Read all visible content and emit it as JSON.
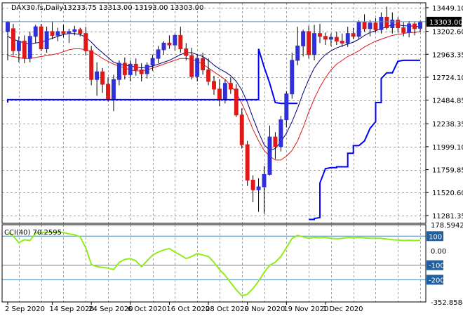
{
  "header": {
    "symbol": "DAX30.fs,Daily",
    "ohlc": "13233.75 13313.00 13193.00 13303.00"
  },
  "cci_label": "CCI(40) 70.2595",
  "colors": {
    "bull": "#3030d8",
    "bear": "#e01818",
    "ma_fast": "#000080",
    "ma_slow": "#e01818",
    "trail": "#0000ff",
    "cci": "#90ee18",
    "price_box": "#000000",
    "level_box": "#2060a0",
    "hline": "#4a86b4"
  },
  "chart_data": [
    {
      "type": "candlestick",
      "title": "DAX30.fs,Daily",
      "subtitle": "13233.75 13313.00 13193.00 13303.00",
      "ylim": [
        11200,
        13500
      ],
      "ticks_y": [
        "13449.10",
        "13202.60",
        "12963.35",
        "12724.10",
        "12484.85",
        "12238.35",
        "11999.10",
        "11759.85",
        "11520.60",
        "11281.35"
      ],
      "ticks_x": [
        "2 Sep 2020",
        "14 Sep 2020",
        "24 Sep 2020",
        "6 Oct 2020",
        "16 Oct 2020",
        "28 Oct 2020",
        "9 Nov 2020",
        "19 Nov 2020",
        "1 Dec 2020"
      ],
      "current_price": "13303.00",
      "candles": [
        {
          "o": 13200,
          "h": 13310,
          "l": 12900,
          "c": 13300
        },
        {
          "o": 13230,
          "h": 13280,
          "l": 12950,
          "c": 13000
        },
        {
          "o": 13000,
          "h": 13150,
          "l": 12880,
          "c": 13100
        },
        {
          "o": 13100,
          "h": 13160,
          "l": 12870,
          "c": 12920
        },
        {
          "o": 12920,
          "h": 13200,
          "l": 12880,
          "c": 13150
        },
        {
          "o": 13150,
          "h": 13270,
          "l": 13080,
          "c": 13250
        },
        {
          "o": 13250,
          "h": 13280,
          "l": 13000,
          "c": 13020
        },
        {
          "o": 13020,
          "h": 13250,
          "l": 12980,
          "c": 13200
        },
        {
          "o": 13200,
          "h": 13300,
          "l": 13120,
          "c": 13160
        },
        {
          "o": 13160,
          "h": 13240,
          "l": 13100,
          "c": 13200
        },
        {
          "o": 13200,
          "h": 13270,
          "l": 13140,
          "c": 13180
        },
        {
          "o": 13180,
          "h": 13230,
          "l": 13080,
          "c": 13200
        },
        {
          "o": 13200,
          "h": 13260,
          "l": 13160,
          "c": 13220
        },
        {
          "o": 13220,
          "h": 13240,
          "l": 13150,
          "c": 13180
        },
        {
          "o": 13180,
          "h": 13250,
          "l": 12950,
          "c": 13000
        },
        {
          "o": 13000,
          "h": 13050,
          "l": 12640,
          "c": 12700
        },
        {
          "o": 12700,
          "h": 12880,
          "l": 12530,
          "c": 12780
        },
        {
          "o": 12780,
          "h": 12820,
          "l": 12560,
          "c": 12650
        },
        {
          "o": 12650,
          "h": 12720,
          "l": 12470,
          "c": 12500
        },
        {
          "o": 12500,
          "h": 12750,
          "l": 12370,
          "c": 12700
        },
        {
          "o": 12700,
          "h": 12900,
          "l": 12640,
          "c": 12870
        },
        {
          "o": 12870,
          "h": 12930,
          "l": 12700,
          "c": 12750
        },
        {
          "o": 12750,
          "h": 12900,
          "l": 12680,
          "c": 12860
        },
        {
          "o": 12860,
          "h": 12920,
          "l": 12740,
          "c": 12800
        },
        {
          "o": 12800,
          "h": 12870,
          "l": 12680,
          "c": 12760
        },
        {
          "o": 12760,
          "h": 12880,
          "l": 12710,
          "c": 12850
        },
        {
          "o": 12850,
          "h": 12960,
          "l": 12790,
          "c": 12920
        },
        {
          "o": 12920,
          "h": 13050,
          "l": 12870,
          "c": 13010
        },
        {
          "o": 13010,
          "h": 13100,
          "l": 12960,
          "c": 13080
        },
        {
          "o": 13080,
          "h": 13160,
          "l": 13020,
          "c": 13060
        },
        {
          "o": 13060,
          "h": 13180,
          "l": 13000,
          "c": 13160
        },
        {
          "o": 13160,
          "h": 13250,
          "l": 12980,
          "c": 13020
        },
        {
          "o": 13020,
          "h": 13080,
          "l": 12900,
          "c": 12950
        },
        {
          "o": 12950,
          "h": 13030,
          "l": 12700,
          "c": 12730
        },
        {
          "o": 12730,
          "h": 12960,
          "l": 12680,
          "c": 12920
        },
        {
          "o": 12920,
          "h": 12980,
          "l": 12750,
          "c": 12800
        },
        {
          "o": 12800,
          "h": 12920,
          "l": 12640,
          "c": 12680
        },
        {
          "o": 12680,
          "h": 12740,
          "l": 12540,
          "c": 12600
        },
        {
          "o": 12600,
          "h": 12700,
          "l": 12420,
          "c": 12500
        },
        {
          "o": 12500,
          "h": 12700,
          "l": 12450,
          "c": 12660
        },
        {
          "o": 12660,
          "h": 12720,
          "l": 12550,
          "c": 12600
        },
        {
          "o": 12600,
          "h": 12650,
          "l": 12310,
          "c": 12330
        },
        {
          "o": 12330,
          "h": 12400,
          "l": 11980,
          "c": 12020
        },
        {
          "o": 12020,
          "h": 12060,
          "l": 11590,
          "c": 11650
        },
        {
          "o": 11650,
          "h": 11700,
          "l": 11420,
          "c": 11550
        },
        {
          "o": 11550,
          "h": 11670,
          "l": 11320,
          "c": 11580
        },
        {
          "o": 11580,
          "h": 11800,
          "l": 11300,
          "c": 11710
        },
        {
          "o": 11710,
          "h": 12220,
          "l": 11700,
          "c": 12100
        },
        {
          "o": 12100,
          "h": 12150,
          "l": 11870,
          "c": 12000
        },
        {
          "o": 12000,
          "h": 12320,
          "l": 11950,
          "c": 12280
        },
        {
          "o": 12280,
          "h": 12580,
          "l": 12200,
          "c": 12550
        },
        {
          "o": 12550,
          "h": 12980,
          "l": 12500,
          "c": 12900
        },
        {
          "o": 12900,
          "h": 13250,
          "l": 12850,
          "c": 13050
        },
        {
          "o": 13050,
          "h": 13220,
          "l": 12940,
          "c": 13200
        },
        {
          "o": 13200,
          "h": 13260,
          "l": 12920,
          "c": 12960
        },
        {
          "o": 12960,
          "h": 13270,
          "l": 12900,
          "c": 13180
        },
        {
          "o": 13180,
          "h": 13280,
          "l": 13080,
          "c": 13150
        },
        {
          "o": 13150,
          "h": 13190,
          "l": 13060,
          "c": 13120
        },
        {
          "o": 13120,
          "h": 13180,
          "l": 13050,
          "c": 13140
        },
        {
          "o": 13140,
          "h": 13200,
          "l": 13060,
          "c": 13100
        },
        {
          "o": 13100,
          "h": 13180,
          "l": 13040,
          "c": 13080
        },
        {
          "o": 13080,
          "h": 13250,
          "l": 13040,
          "c": 13180
        },
        {
          "o": 13180,
          "h": 13240,
          "l": 13120,
          "c": 13150
        },
        {
          "o": 13150,
          "h": 13320,
          "l": 13120,
          "c": 13300
        },
        {
          "o": 13300,
          "h": 13380,
          "l": 13200,
          "c": 13230
        },
        {
          "o": 13230,
          "h": 13320,
          "l": 13150,
          "c": 13290
        },
        {
          "o": 13290,
          "h": 13340,
          "l": 13190,
          "c": 13220
        },
        {
          "o": 13220,
          "h": 13400,
          "l": 13180,
          "c": 13350
        },
        {
          "o": 13350,
          "h": 13460,
          "l": 13220,
          "c": 13240
        },
        {
          "o": 13240,
          "h": 13400,
          "l": 13180,
          "c": 13320
        },
        {
          "o": 13320,
          "h": 13350,
          "l": 13190,
          "c": 13240
        },
        {
          "o": 13240,
          "h": 13300,
          "l": 13150,
          "c": 13190
        },
        {
          "o": 13190,
          "h": 13310,
          "l": 13140,
          "c": 13280
        },
        {
          "o": 13280,
          "h": 13300,
          "l": 13160,
          "c": 13230
        },
        {
          "o": 13233.75,
          "h": 13313,
          "l": 13193,
          "c": 13303
        }
      ],
      "ma_fast": [
        13150,
        13120,
        13100,
        13080,
        13070,
        13080,
        13090,
        13110,
        13130,
        13150,
        13170,
        13180,
        13180,
        13170,
        13140,
        13090,
        13030,
        12980,
        12930,
        12880,
        12860,
        12850,
        12840,
        12830,
        12820,
        12830,
        12840,
        12860,
        12880,
        12900,
        12930,
        12960,
        12980,
        12980,
        12960,
        12940,
        12900,
        12850,
        12810,
        12780,
        12740,
        12680,
        12590,
        12460,
        12300,
        12150,
        12020,
        11960,
        11980,
        12050,
        12140,
        12260,
        12400,
        12560,
        12700,
        12820,
        12900,
        12960,
        13000,
        13030,
        13050,
        13070,
        13090,
        13120,
        13160,
        13190,
        13210,
        13230,
        13250,
        13270,
        13270,
        13260,
        13260,
        13255,
        13250
      ],
      "ma_slow": [
        12950,
        12940,
        12930,
        12920,
        12920,
        12930,
        12940,
        12950,
        12960,
        12970,
        12990,
        13010,
        13020,
        13020,
        13010,
        12990,
        12960,
        12920,
        12890,
        12860,
        12840,
        12820,
        12800,
        12790,
        12790,
        12800,
        12820,
        12840,
        12860,
        12880,
        12900,
        12920,
        12920,
        12910,
        12890,
        12860,
        12820,
        12780,
        12740,
        12700,
        12640,
        12560,
        12450,
        12320,
        12180,
        12060,
        11960,
        11900,
        11860,
        11860,
        11900,
        11960,
        12060,
        12200,
        12360,
        12500,
        12620,
        12720,
        12800,
        12860,
        12900,
        12940,
        12970,
        13000,
        13040,
        13070,
        13100,
        13120,
        13140,
        13160,
        13170,
        13180,
        13190,
        13190,
        13200
      ],
      "trail": [
        [
          0,
          12460
        ],
        [
          0,
          12490
        ],
        [
          1,
          12490
        ],
        [
          2,
          12490
        ],
        [
          44,
          12490
        ],
        [
          45,
          12490
        ],
        [
          45,
          13020
        ],
        [
          46,
          12830
        ],
        [
          47,
          12660
        ],
        [
          48,
          12460
        ],
        [
          49,
          12450
        ],
        [
          50,
          12450
        ],
        [
          51,
          12450
        ],
        [
          52,
          12450
        ],
        null,
        [
          54,
          11240
        ],
        [
          55,
          11240
        ],
        [
          55,
          11250
        ],
        [
          56,
          11260
        ],
        [
          56,
          11620
        ],
        [
          57,
          11770
        ],
        [
          58,
          11780
        ],
        [
          59,
          11780
        ],
        [
          59,
          11790
        ],
        [
          60,
          11790
        ],
        [
          61,
          11790
        ],
        [
          61,
          11930
        ],
        [
          62,
          11930
        ],
        [
          62,
          12010
        ],
        [
          63,
          12010
        ],
        [
          64,
          12060
        ],
        [
          65,
          12190
        ],
        [
          66,
          12260
        ],
        [
          66,
          12460
        ],
        [
          67,
          12460
        ],
        [
          67,
          12710
        ],
        [
          68,
          12770
        ],
        [
          69,
          12770
        ],
        [
          70,
          12890
        ],
        [
          71,
          12900
        ],
        [
          72,
          12900
        ],
        [
          73,
          12900
        ],
        [
          74,
          12900
        ]
      ]
    },
    {
      "type": "line",
      "title": "CCI(40) 70.2595",
      "ylim": [
        -352.8584,
        178.5942
      ],
      "ticks_y": [
        "178.5942",
        "100",
        "0.00",
        "-100",
        "-200",
        "-352.8584"
      ],
      "levels": [
        100,
        -100,
        -200
      ],
      "values": [
        125,
        100,
        55,
        75,
        70,
        120,
        125,
        125,
        125,
        125,
        125,
        115,
        110,
        95,
        20,
        -95,
        -110,
        -115,
        -120,
        -130,
        -80,
        -60,
        -55,
        -70,
        -110,
        -70,
        -30,
        -10,
        5,
        15,
        -10,
        -30,
        -55,
        -40,
        -20,
        -30,
        -40,
        -80,
        -130,
        -170,
        -220,
        -270,
        -310,
        -300,
        -260,
        -210,
        -150,
        -100,
        -80,
        -40,
        20,
        85,
        105,
        95,
        85,
        90,
        88,
        90,
        85,
        82,
        85,
        90,
        88,
        90,
        88,
        86,
        86,
        85,
        80,
        75,
        73,
        70,
        72,
        70,
        70.2595
      ]
    }
  ]
}
